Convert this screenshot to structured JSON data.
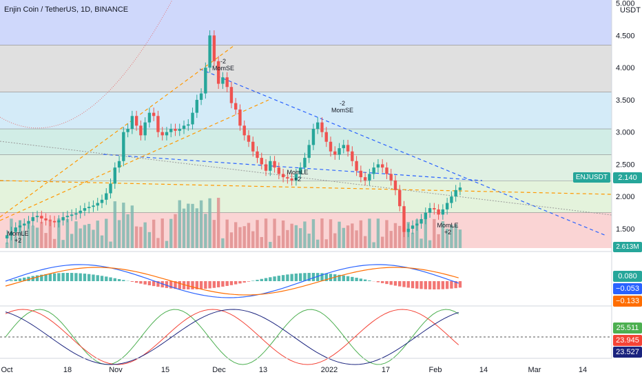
{
  "header": {
    "title": "Enjin Coin / TetherUS, 1D, BINANCE"
  },
  "price_axis": {
    "currency": "USDT",
    "ticks": [
      "5.000",
      "4.500",
      "4.000",
      "3.500",
      "3.000",
      "2.500",
      "2.000",
      "1.500"
    ]
  },
  "time_axis": {
    "ticks": [
      "Oct",
      "18",
      "Nov",
      "15",
      "Dec",
      "13",
      "2022",
      "17",
      "Feb",
      "14",
      "Mar",
      "14"
    ]
  },
  "symbol_label": "ENJUSDT",
  "last_price": "2.140",
  "volume_label": "2.613M",
  "macd_values": {
    "hist": "0.080",
    "macd": "−0.053",
    "signal": "−0.133"
  },
  "osc_values": {
    "green": "25.511",
    "red": "23.945",
    "navy": "23.527"
  },
  "annotations": [
    {
      "text": "-2",
      "sub": "MomSE"
    },
    {
      "text": "-2",
      "sub": "MomSE"
    },
    {
      "text": "MomLE",
      "sub": "+2"
    },
    {
      "text": "MomLE",
      "sub": "+2"
    },
    {
      "text": "MomLE",
      "sub": "+2"
    }
  ],
  "colors": {
    "up": "#26a69a",
    "down": "#ef5350",
    "macd": "#2962ff",
    "signal": "#ff6d00",
    "osc_green": "#4caf50",
    "osc_red": "#f44336",
    "osc_navy": "#1a237e"
  },
  "chart_data": {
    "type": "candlestick",
    "symbol": "ENJUSDT",
    "ylim": [
      1.2,
      5.05
    ],
    "candles_close": [
      1.4,
      1.45,
      1.52,
      1.55,
      1.58,
      1.62,
      1.68,
      1.7,
      1.66,
      1.63,
      1.62,
      1.6,
      1.63,
      1.68,
      1.7,
      1.72,
      1.74,
      1.78,
      1.82,
      1.84,
      1.86,
      1.9,
      1.95,
      2.05,
      2.2,
      2.45,
      2.55,
      3.0,
      3.05,
      3.25,
      3.1,
      2.95,
      3.15,
      3.3,
      3.25,
      3.0,
      2.95,
      3.0,
      3.05,
      3.02,
      3.05,
      3.1,
      3.12,
      3.3,
      3.5,
      3.6,
      4.0,
      4.5,
      4.1,
      3.75,
      3.85,
      3.7,
      3.45,
      3.35,
      3.1,
      2.95,
      2.85,
      2.7,
      2.6,
      2.5,
      2.4,
      2.55,
      2.45,
      2.35,
      2.3,
      2.28,
      2.25,
      2.35,
      2.45,
      2.6,
      2.8,
      3.05,
      3.15,
      3.0,
      2.85,
      2.7,
      2.65,
      2.75,
      2.8,
      2.7,
      2.55,
      2.4,
      2.3,
      2.25,
      2.35,
      2.45,
      2.5,
      2.45,
      2.35,
      2.25,
      2.1,
      1.85,
      1.45,
      1.5,
      1.55,
      1.58,
      1.65,
      1.75,
      1.82,
      1.8,
      1.72,
      1.8,
      1.9,
      2.0,
      2.1,
      2.14
    ]
  }
}
